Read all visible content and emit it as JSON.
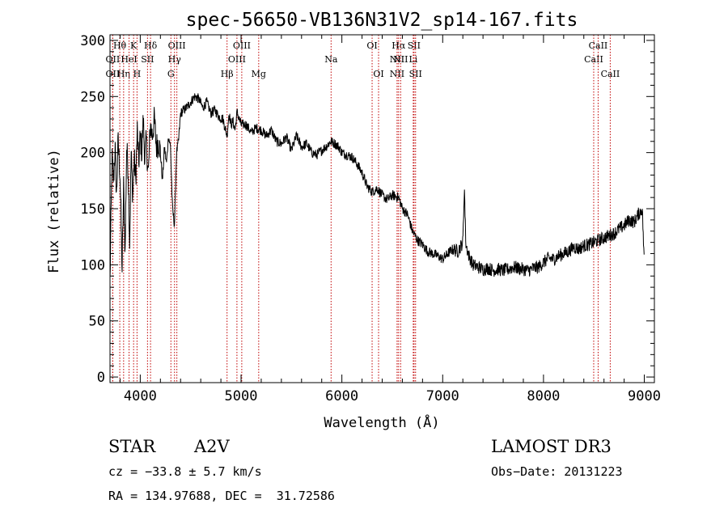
{
  "chart_data": {
    "type": "line",
    "title": "spec-56650-VB136N31V2_sp14-167.fits",
    "xlabel": "Wavelength (Å)",
    "ylabel": "Flux (relative)",
    "xlim": [
      3700,
      9100
    ],
    "ylim": [
      -5,
      305
    ],
    "xticks": [
      4000,
      5000,
      6000,
      7000,
      8000,
      9000
    ],
    "yticks": [
      0,
      50,
      100,
      150,
      200,
      250,
      300
    ],
    "series": [
      {
        "name": "flux",
        "x": [
          3700,
          3720,
          3735,
          3750,
          3765,
          3780,
          3800,
          3820,
          3835,
          3850,
          3865,
          3880,
          3895,
          3910,
          3925,
          3940,
          3955,
          3970,
          3985,
          4000,
          4015,
          4030,
          4045,
          4060,
          4080,
          4100,
          4120,
          4140,
          4160,
          4180,
          4200,
          4220,
          4240,
          4260,
          4280,
          4300,
          4320,
          4340,
          4360,
          4380,
          4400,
          4430,
          4460,
          4500,
          4540,
          4580,
          4620,
          4660,
          4700,
          4740,
          4780,
          4820,
          4861,
          4880,
          4900,
          4920,
          4940,
          4960,
          5000,
          5050,
          5100,
          5150,
          5200,
          5250,
          5300,
          5350,
          5400,
          5450,
          5500,
          5550,
          5600,
          5650,
          5700,
          5750,
          5800,
          5850,
          5890,
          5930,
          5970,
          6000,
          6050,
          6100,
          6150,
          6200,
          6250,
          6300,
          6350,
          6400,
          6450,
          6500,
          6563,
          6600,
          6650,
          6700,
          6750,
          6800,
          6850,
          6900,
          6950,
          7000,
          7050,
          7100,
          7150,
          7200,
          7215,
          7230,
          7260,
          7300,
          7350,
          7400,
          7450,
          7500,
          7550,
          7600,
          7650,
          7700,
          7750,
          7800,
          7850,
          7900,
          7950,
          8000,
          8050,
          8100,
          8150,
          8200,
          8250,
          8300,
          8350,
          8400,
          8450,
          8500,
          8550,
          8600,
          8650,
          8700,
          8750,
          8800,
          8850,
          8900,
          8940,
          8980,
          9000
        ],
        "y": [
          85,
          195,
          175,
          205,
          160,
          210,
          180,
          95,
          170,
          110,
          205,
          185,
          120,
          200,
          160,
          195,
          175,
          220,
          190,
          215,
          200,
          230,
          195,
          210,
          180,
          225,
          215,
          230,
          205,
          210,
          200,
          175,
          205,
          190,
          215,
          205,
          150,
          135,
          200,
          210,
          235,
          238,
          240,
          245,
          250,
          248,
          240,
          245,
          235,
          238,
          232,
          230,
          215,
          235,
          225,
          228,
          220,
          236,
          225,
          225,
          218,
          222,
          220,
          215,
          220,
          210,
          208,
          214,
          202,
          215,
          205,
          208,
          200,
          198,
          202,
          206,
          210,
          208,
          205,
          200,
          198,
          196,
          190,
          182,
          170,
          165,
          168,
          162,
          158,
          162,
          160,
          150,
          145,
          130,
          122,
          118,
          112,
          110,
          108,
          105,
          110,
          114,
          112,
          120,
          170,
          118,
          108,
          100,
          98,
          96,
          97,
          95,
          96,
          95,
          96,
          98,
          97,
          96,
          95,
          97,
          98,
          102,
          106,
          105,
          108,
          110,
          112,
          116,
          114,
          117,
          118,
          120,
          122,
          124,
          126,
          128,
          132,
          135,
          140,
          138,
          145,
          150,
          100
        ]
      }
    ],
    "line_markers": [
      {
        "label": "Hθ",
        "x": 3797,
        "row": 1
      },
      {
        "label": "OII",
        "x": 3727,
        "row": 2
      },
      {
        "label": "OII",
        "x": 3727,
        "row": 3
      },
      {
        "label": "Hη",
        "x": 3835,
        "row": 3
      },
      {
        "label": "HeI",
        "x": 3889,
        "row": 2
      },
      {
        "label": "K",
        "x": 3934,
        "row": 1
      },
      {
        "label": "H",
        "x": 3968,
        "row": 3
      },
      {
        "label": "SII",
        "x": 4072,
        "row": 2
      },
      {
        "label": "Hδ",
        "x": 4102,
        "row": 1
      },
      {
        "label": "G",
        "x": 4304,
        "row": 3
      },
      {
        "label": "Hγ",
        "x": 4340,
        "row": 2
      },
      {
        "label": "OIII",
        "x": 4363,
        "row": 1
      },
      {
        "label": "Hβ",
        "x": 4861,
        "row": 3
      },
      {
        "label": "OIII",
        "x": 4959,
        "row": 2
      },
      {
        "label": "OIII",
        "x": 5007,
        "row": 1
      },
      {
        "label": "Mg",
        "x": 5175,
        "row": 3
      },
      {
        "label": "Na",
        "x": 5893,
        "row": 2
      },
      {
        "label": "OI",
        "x": 6300,
        "row": 1
      },
      {
        "label": "OI",
        "x": 6364,
        "row": 3
      },
      {
        "label": "NII",
        "x": 6548,
        "row": 2
      },
      {
        "label": "NII",
        "x": 6548,
        "row": 3
      },
      {
        "label": "Hα",
        "x": 6563,
        "row": 1
      },
      {
        "label": "NII",
        "x": 6583,
        "row": 2
      },
      {
        "label": "Li",
        "x": 6708,
        "row": 2
      },
      {
        "label": "SII",
        "x": 6716,
        "row": 1
      },
      {
        "label": "SII",
        "x": 6731,
        "row": 3
      },
      {
        "label": "CaII",
        "x": 8498,
        "row": 2
      },
      {
        "label": "CaII",
        "x": 8542,
        "row": 1
      },
      {
        "label": "CaII",
        "x": 8662,
        "row": 3
      }
    ],
    "line_color": "#c00000",
    "trace_color": "#000000"
  },
  "info": {
    "obj_class": "STAR",
    "subclass": "A2V",
    "cz": "cz = −33.8 ± 5.7 km/s",
    "coords": "RA = 134.97688, DEC =  31.72586",
    "survey": "LAMOST DR3",
    "obs_date": "Obs−Date: 20131223"
  }
}
